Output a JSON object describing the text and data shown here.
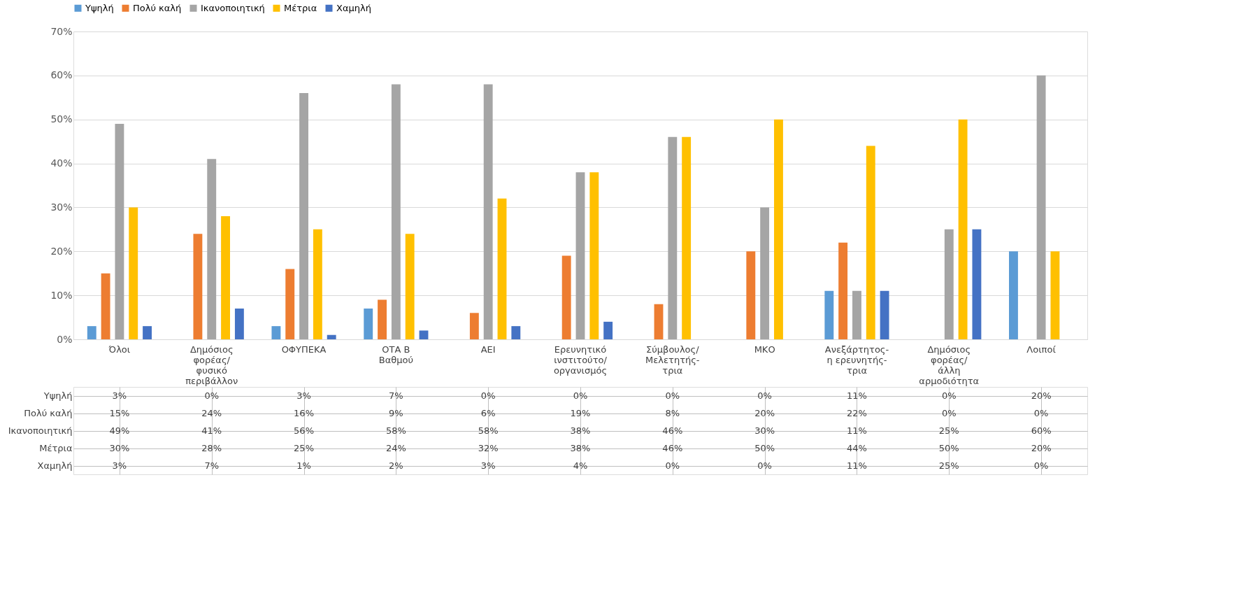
{
  "chart_data": {
    "type": "bar",
    "categories": [
      "Όλοι",
      "Δημόσιος\nφορέας/\nφυσικό\nπεριβάλλον",
      "ΟΦΥΠΕΚΑ",
      "ΟΤΑ Β\nΒαθμού",
      "ΑΕΙ",
      "Ερευνητικό\nινστιτούτο/\nοργανισμός",
      "Σύμβουλος/\nΜελετητής-\nτρια",
      "ΜΚΟ",
      "Ανεξάρτητος-\nη ερευνητής-\nτρια",
      "Δημόσιος\nφορέας/\nάλλη\nαρμοδιότητα",
      "Λοιποί"
    ],
    "series": [
      {
        "name": "Υψηλή",
        "color": "#5b9bd5",
        "values": [
          3,
          0,
          3,
          7,
          0,
          0,
          0,
          0,
          11,
          0,
          20
        ],
        "value_labels": [
          "3%",
          "0%",
          "3%",
          "7%",
          "0%",
          "0%",
          "0%",
          "0%",
          "11%",
          "0%",
          "20%"
        ]
      },
      {
        "name": "Πολύ καλή",
        "color": "#ed7d31",
        "values": [
          15,
          24,
          16,
          9,
          6,
          19,
          8,
          20,
          22,
          0,
          0
        ],
        "value_labels": [
          "15%",
          "24%",
          "16%",
          "9%",
          "6%",
          "19%",
          "8%",
          "20%",
          "22%",
          "0%",
          "0%"
        ]
      },
      {
        "name": "Ικανοποιητική",
        "color": "#a5a5a5",
        "values": [
          49,
          41,
          56,
          58,
          58,
          38,
          46,
          30,
          11,
          25,
          60
        ],
        "value_labels": [
          "49%",
          "41%",
          "56%",
          "58%",
          "58%",
          "38%",
          "46%",
          "30%",
          "11%",
          "25%",
          "60%"
        ]
      },
      {
        "name": "Μέτρια",
        "color": "#ffc000",
        "values": [
          30,
          28,
          25,
          24,
          32,
          38,
          46,
          50,
          44,
          50,
          20
        ],
        "value_labels": [
          "30%",
          "28%",
          "25%",
          "24%",
          "32%",
          "38%",
          "46%",
          "50%",
          "44%",
          "50%",
          "20%"
        ]
      },
      {
        "name": "Χαμηλή",
        "color": "#4472c4",
        "values": [
          3,
          7,
          1,
          2,
          3,
          4,
          0,
          0,
          11,
          25,
          0
        ],
        "value_labels": [
          "3%",
          "7%",
          "1%",
          "2%",
          "3%",
          "4%",
          "0%",
          "0%",
          "11%",
          "25%",
          "0%"
        ]
      }
    ],
    "ylim": [
      0,
      70
    ],
    "yticks": [
      {
        "value": 0,
        "label": "0%"
      },
      {
        "value": 10,
        "label": "10%"
      },
      {
        "value": 20,
        "label": "20%"
      },
      {
        "value": 30,
        "label": "30%"
      },
      {
        "value": 40,
        "label": "40%"
      },
      {
        "value": 50,
        "label": "50%"
      },
      {
        "value": 60,
        "label": "60%"
      },
      {
        "value": 70,
        "label": "70%"
      }
    ],
    "grid": "y",
    "legend": "top"
  }
}
